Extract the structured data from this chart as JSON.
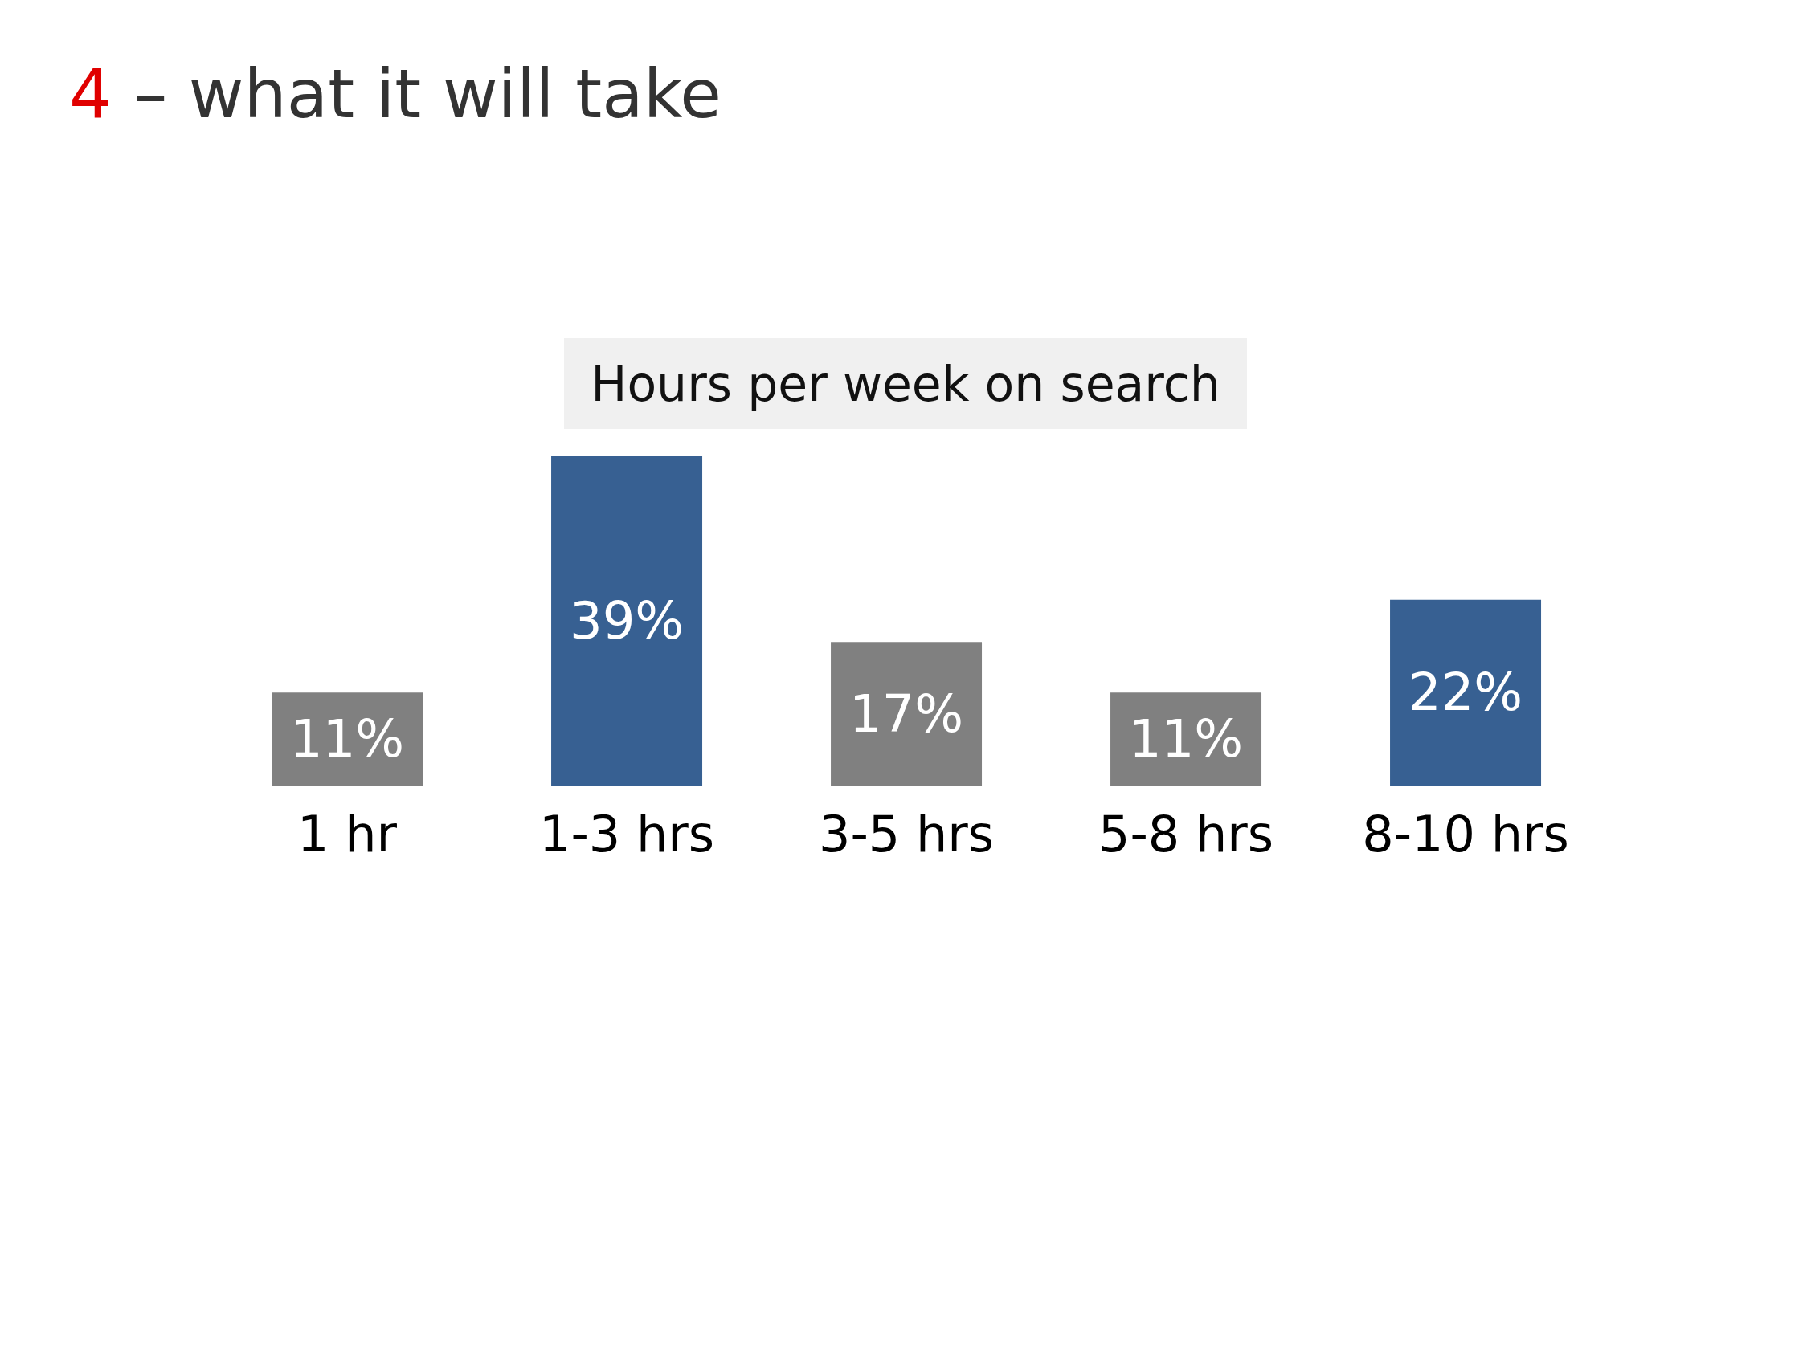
{
  "chart_data": {
    "type": "bar",
    "title": "4 – what it will take",
    "subtitle": "Hours per week on search",
    "categories": [
      "1 hr",
      "1-3 hrs",
      "3-5 hrs",
      "5-8 hrs",
      "8-10 hrs"
    ],
    "values": [
      11,
      39,
      17,
      11,
      22
    ],
    "value_labels": [
      "11%",
      "39%",
      "17%",
      "11%",
      "22%"
    ],
    "colors": [
      "#808080",
      "#376092",
      "#808080",
      "#808080",
      "#376092"
    ],
    "grid": false,
    "legend": false
  }
}
